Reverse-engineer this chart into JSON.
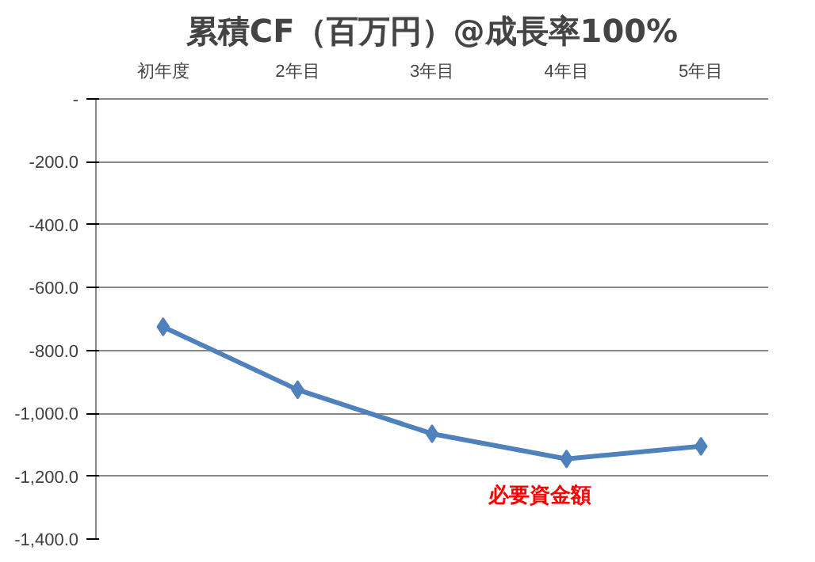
{
  "chart_data": {
    "type": "line",
    "title": "累積CF（百万円）@成長率100%",
    "categories": [
      "初年度",
      "2年目",
      "3年目",
      "4年目",
      "5年目"
    ],
    "series": [
      {
        "color": "#4f81bd",
        "values": [
          -725,
          -925,
          -1065,
          -1145,
          -1105
        ]
      }
    ],
    "ylim": [
      -1400,
      0
    ],
    "yticks": [
      {
        "value": 0,
        "label": "-"
      },
      {
        "value": -200,
        "label": "-200.0"
      },
      {
        "value": -400,
        "label": "-400.0"
      },
      {
        "value": -600,
        "label": "-600.0"
      },
      {
        "value": -800,
        "label": "-800.0"
      },
      {
        "value": -1000,
        "label": "-1,000.0"
      },
      {
        "value": -1200,
        "label": "-1,200.0"
      },
      {
        "value": -1400,
        "label": "-1,400.0"
      }
    ],
    "grid": "y",
    "marker": "diamond",
    "line_style": "solid",
    "annotations": [
      {
        "text": "必要資金額",
        "x": "4年目",
        "y": -1145
      }
    ]
  }
}
